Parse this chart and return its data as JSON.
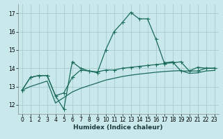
{
  "xlabel": "Humidex (Indice chaleur)",
  "bg_color": "#c8e8ec",
  "grid_color": "#a8ccd0",
  "line_color": "#1a6b5a",
  "xlim": [
    -0.5,
    23.5
  ],
  "ylim": [
    11.5,
    17.5
  ],
  "xticks": [
    0,
    1,
    2,
    3,
    4,
    5,
    6,
    7,
    8,
    9,
    10,
    11,
    12,
    13,
    14,
    15,
    16,
    17,
    18,
    19,
    20,
    21,
    22,
    23
  ],
  "yticks": [
    12,
    13,
    14,
    15,
    16,
    17
  ],
  "line1_x": [
    0,
    1,
    2,
    3,
    4,
    5,
    6,
    7,
    8,
    9,
    10,
    11,
    12,
    13,
    14,
    15,
    16,
    17,
    18,
    19,
    20,
    21,
    22,
    23
  ],
  "line1_y": [
    12.8,
    13.5,
    13.6,
    13.6,
    12.5,
    11.75,
    14.35,
    14.0,
    13.85,
    13.75,
    15.0,
    16.0,
    16.5,
    17.05,
    16.7,
    16.7,
    15.6,
    14.3,
    14.35,
    13.85,
    13.85,
    14.05,
    14.0,
    14.0
  ],
  "line2_x": [
    0,
    1,
    2,
    3,
    4,
    5,
    6,
    7,
    8,
    9,
    10,
    11,
    12,
    13,
    14,
    15,
    16,
    17,
    18,
    19,
    20,
    21,
    22,
    23
  ],
  "line2_y": [
    12.8,
    13.5,
    13.6,
    13.6,
    12.5,
    12.65,
    13.5,
    13.9,
    13.85,
    13.8,
    13.9,
    13.9,
    14.0,
    14.05,
    14.1,
    14.15,
    14.2,
    14.25,
    14.3,
    14.35,
    13.85,
    13.85,
    14.0,
    14.0
  ],
  "line3_x": [
    0,
    1,
    2,
    3,
    4,
    5,
    6,
    7,
    8,
    9,
    10,
    11,
    12,
    13,
    14,
    15,
    16,
    17,
    18,
    19,
    20,
    21,
    22,
    23
  ],
  "line3_y": [
    12.8,
    13.0,
    13.15,
    13.3,
    12.1,
    12.4,
    12.7,
    12.9,
    13.05,
    13.2,
    13.35,
    13.45,
    13.55,
    13.62,
    13.68,
    13.73,
    13.78,
    13.82,
    13.85,
    13.87,
    13.72,
    13.75,
    13.85,
    13.88
  ]
}
